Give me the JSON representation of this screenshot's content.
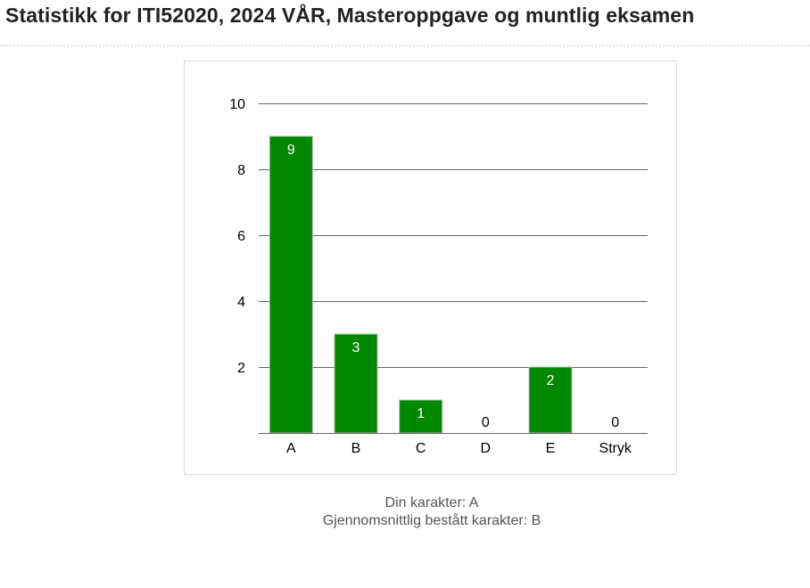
{
  "page": {
    "title": "Statistikk for ITI52020, 2024 VÅR, Masteroppgave og muntlig eksamen"
  },
  "summary": {
    "your_grade": "Din karakter: A",
    "average_grade": "Gjennomsnittlig bestått karakter: B"
  },
  "colors": {
    "bar": "#008800",
    "bar_border": "#b4b4b4",
    "grid": "#666666",
    "label_inside": "#ffffff",
    "label_outside": "#000000"
  },
  "chart_data": {
    "type": "bar",
    "categories": [
      "A",
      "B",
      "C",
      "D",
      "E",
      "Stryk"
    ],
    "values": [
      9,
      3,
      1,
      0,
      2,
      0
    ],
    "value_labels": [
      "9",
      "3",
      "1",
      "0",
      "2",
      "0"
    ],
    "ylim": [
      0,
      10
    ],
    "yticks": [
      2,
      4,
      6,
      8,
      10
    ],
    "ytick_labels": [
      "2",
      "4",
      "6",
      "8",
      "10"
    ],
    "title": "",
    "xlabel": "",
    "ylabel": "",
    "grid": true,
    "legend": "none"
  }
}
